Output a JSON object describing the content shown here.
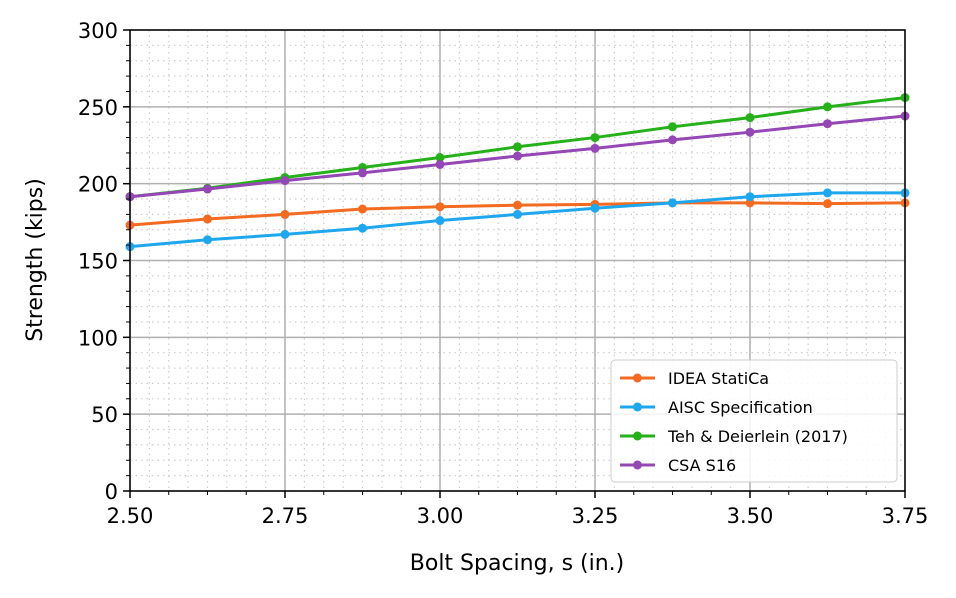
{
  "chart_data": {
    "type": "line",
    "title": "",
    "xlabel": "Bolt Spacing, s (in.)",
    "ylabel": "Strength (kips)",
    "xlim": [
      2.5,
      3.75
    ],
    "ylim": [
      0,
      300
    ],
    "xticks": [
      "2.50",
      "2.75",
      "3.00",
      "3.25",
      "3.50",
      "3.75"
    ],
    "yticks": [
      "0",
      "50",
      "100",
      "150",
      "200",
      "250",
      "300"
    ],
    "grid": "major solid, minor dotted",
    "legend_position": "lower-right",
    "x": [
      2.5,
      2.625,
      2.75,
      2.875,
      3.0,
      3.125,
      3.25,
      3.375,
      3.5,
      3.625,
      3.75
    ],
    "series": [
      {
        "name": "IDEA StatiCa",
        "color": "#f26b21",
        "values": [
          173,
          177,
          180,
          183.5,
          185,
          186,
          186.5,
          187.5,
          187.5,
          187,
          187.5
        ]
      },
      {
        "name": "AISC Specification",
        "color": "#1ea7ef",
        "values": [
          159,
          163.5,
          167,
          171,
          176,
          180,
          184,
          187.5,
          191.5,
          194,
          194
        ]
      },
      {
        "name": "Teh & Deierlein (2017)",
        "color": "#26b01a",
        "values": [
          191.5,
          197,
          204,
          210.5,
          217,
          224,
          230,
          237,
          243,
          250,
          256
        ]
      },
      {
        "name": "CSA S16",
        "color": "#9447b5",
        "values": [
          191.5,
          196.5,
          202,
          207,
          212.5,
          218,
          223,
          228.5,
          233.5,
          239,
          244
        ]
      }
    ]
  }
}
